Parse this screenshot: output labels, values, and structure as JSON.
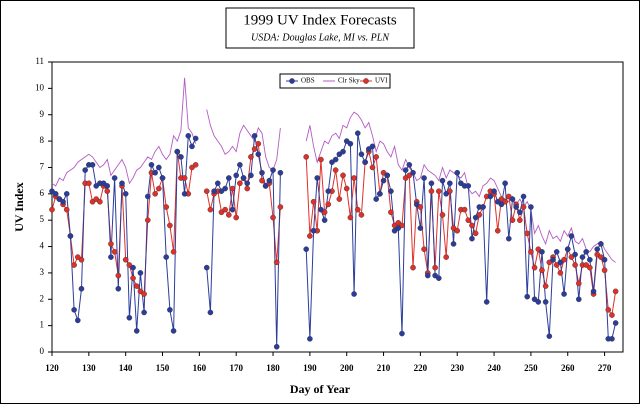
{
  "chart_data": {
    "type": "line",
    "title": "1999 UV Index Forecasts",
    "subtitle": "USDA: Douglas Lake, MI vs. PLN",
    "x_label": "Day of Year",
    "y_label": "UV Index",
    "xlim": [
      120,
      275
    ],
    "ylim": [
      0,
      11
    ],
    "xticks": [
      120,
      130,
      140,
      150,
      160,
      170,
      180,
      190,
      200,
      210,
      220,
      230,
      240,
      250,
      260,
      270
    ],
    "yticks": [
      0,
      1,
      2,
      3,
      4,
      5,
      6,
      7,
      8,
      9,
      10,
      11
    ],
    "legend": "top",
    "x": [
      120,
      121,
      122,
      123,
      124,
      125,
      126,
      127,
      128,
      129,
      130,
      131,
      132,
      133,
      134,
      135,
      136,
      137,
      138,
      139,
      140,
      141,
      142,
      143,
      144,
      145,
      146,
      147,
      148,
      149,
      150,
      151,
      152,
      153,
      154,
      155,
      156,
      157,
      158,
      159,
      160,
      161,
      162,
      163,
      164,
      165,
      166,
      167,
      168,
      169,
      170,
      171,
      172,
      173,
      174,
      175,
      176,
      177,
      178,
      179,
      180,
      181,
      182,
      183,
      184,
      185,
      186,
      187,
      188,
      189,
      190,
      191,
      192,
      193,
      194,
      195,
      196,
      197,
      198,
      199,
      200,
      201,
      202,
      203,
      204,
      205,
      206,
      207,
      208,
      209,
      210,
      211,
      212,
      213,
      214,
      215,
      216,
      217,
      218,
      219,
      220,
      221,
      222,
      223,
      224,
      225,
      226,
      227,
      228,
      229,
      230,
      231,
      232,
      233,
      234,
      235,
      236,
      237,
      238,
      239,
      240,
      241,
      242,
      243,
      244,
      245,
      246,
      247,
      248,
      249,
      250,
      251,
      252,
      253,
      254,
      255,
      256,
      257,
      258,
      259,
      260,
      261,
      262,
      263,
      264,
      265,
      266,
      267,
      268,
      269,
      270,
      271,
      272,
      273
    ],
    "series": [
      {
        "name": "OBS",
        "color": "#2b3d9c",
        "marker": true,
        "values": [
          6.1,
          6.0,
          5.8,
          5.7,
          6.0,
          4.4,
          1.6,
          1.2,
          2.4,
          6.9,
          7.1,
          7.1,
          6.3,
          6.4,
          6.4,
          6.3,
          3.6,
          6.6,
          2.4,
          6.4,
          6.0,
          1.3,
          3.2,
          0.8,
          3.0,
          1.5,
          5.9,
          7.1,
          6.8,
          7.0,
          6.6,
          3.6,
          1.6,
          0.8,
          7.6,
          7.4,
          6.0,
          8.2,
          7.8,
          8.1,
          null,
          null,
          3.2,
          1.5,
          6.1,
          6.4,
          6.1,
          6.2,
          6.6,
          5.4,
          6.7,
          7.1,
          6.6,
          6.4,
          6.7,
          8.2,
          7.5,
          6.8,
          6.3,
          6.5,
          6.9,
          0.2,
          6.8,
          null,
          null,
          null,
          null,
          null,
          null,
          3.9,
          0.5,
          4.6,
          6.6,
          5.4,
          5.0,
          6.1,
          7.2,
          7.3,
          7.5,
          7.6,
          8.0,
          7.9,
          2.2,
          8.3,
          7.5,
          7.2,
          7.7,
          7.8,
          5.8,
          6.0,
          6.5,
          6.7,
          6.1,
          4.6,
          4.7,
          0.7,
          6.9,
          7.1,
          6.8,
          5.6,
          4.7,
          6.6,
          2.9,
          6.4,
          2.9,
          2.8,
          6.5,
          6.0,
          6.4,
          4.1,
          6.8,
          6.4,
          6.3,
          6.3,
          4.3,
          5.1,
          5.5,
          5.5,
          1.9,
          5.9,
          6.1,
          5.7,
          5.6,
          6.4,
          4.3,
          5.8,
          5.5,
          5.3,
          5.9,
          2.1,
          5.5,
          2.0,
          1.9,
          3.8,
          1.9,
          0.6,
          3.5,
          3.8,
          3.4,
          2.2,
          3.9,
          4.4,
          3.7,
          2.0,
          3.6,
          3.8,
          3.5,
          2.3,
          3.9,
          4.1,
          3.5,
          0.5,
          0.5,
          1.1
        ]
      },
      {
        "name": "Clr Sky",
        "color": "#b45cc4",
        "marker": false,
        "values": [
          6.4,
          6.3,
          6.6,
          6.5,
          6.8,
          6.9,
          7.0,
          7.2,
          7.3,
          7.4,
          7.5,
          7.4,
          7.2,
          7.0,
          7.1,
          7.3,
          6.7,
          6.9,
          7.1,
          7.3,
          7.0,
          6.4,
          6.6,
          6.9,
          7.0,
          7.2,
          7.4,
          7.3,
          7.6,
          7.8,
          7.5,
          7.3,
          7.5,
          8.2,
          8.0,
          8.4,
          10.4,
          8.5,
          8.3,
          7.9,
          null,
          null,
          9.2,
          8.6,
          8.2,
          8.0,
          7.8,
          7.5,
          7.6,
          7.8,
          7.6,
          8.3,
          8.6,
          8.4,
          8.2,
          8.0,
          8.5,
          8.3,
          7.4,
          7.0,
          6.9,
          7.3,
          8.5,
          null,
          null,
          null,
          null,
          null,
          null,
          8.0,
          8.6,
          7.8,
          7.2,
          7.6,
          8.0,
          7.9,
          8.2,
          8.3,
          8.1,
          8.6,
          8.5,
          8.9,
          9.1,
          9.0,
          8.8,
          8.5,
          8.7,
          8.2,
          7.6,
          8.0,
          7.9,
          7.6,
          7.4,
          7.8,
          7.1,
          6.9,
          7.3,
          7.0,
          6.8,
          6.5,
          6.6,
          7.1,
          6.9,
          6.8,
          6.7,
          6.5,
          7.0,
          6.6,
          6.9,
          6.8,
          6.7,
          6.6,
          6.8,
          6.2,
          6.0,
          6.1,
          5.9,
          6.3,
          6.4,
          6.6,
          6.5,
          6.2,
          5.9,
          5.8,
          5.7,
          5.9,
          5.6,
          5.8,
          5.5,
          5.7,
          5.4,
          4.5,
          4.8,
          4.4,
          4.1,
          4.6,
          4.3,
          4.4,
          4.2,
          4.6,
          4.4,
          4.7,
          4.2,
          4.1,
          4.3,
          3.9,
          3.8,
          4.0,
          4.1,
          4.2,
          3.9,
          3.7,
          3.5,
          3.4
        ]
      },
      {
        "name": "UVI",
        "color": "#e0302a",
        "marker": true,
        "values": [
          5.4,
          5.9,
          5.8,
          5.6,
          5.4,
          4.4,
          3.3,
          3.6,
          3.5,
          6.4,
          6.4,
          5.7,
          5.8,
          5.7,
          6.3,
          6.1,
          4.1,
          3.8,
          2.9,
          6.3,
          3.5,
          3.3,
          2.8,
          2.5,
          2.3,
          2.2,
          5.0,
          6.8,
          6.0,
          6.2,
          6.6,
          5.5,
          4.8,
          3.8,
          7.6,
          6.6,
          6.6,
          6.0,
          7.0,
          7.1,
          null,
          null,
          6.1,
          5.4,
          6.0,
          6.1,
          5.3,
          5.4,
          5.2,
          6.2,
          5.1,
          6.4,
          6.6,
          6.2,
          7.4,
          7.7,
          7.9,
          6.5,
          6.3,
          6.4,
          5.1,
          3.4,
          5.5,
          null,
          null,
          null,
          null,
          null,
          null,
          7.4,
          4.4,
          5.7,
          4.6,
          7.3,
          5.3,
          5.6,
          6.1,
          6.9,
          5.8,
          6.7,
          6.2,
          5.1,
          6.6,
          5.4,
          5.2,
          7.2,
          7.6,
          7.0,
          7.4,
          6.0,
          6.8,
          6.7,
          5.3,
          4.8,
          4.9,
          4.8,
          6.6,
          6.7,
          3.2,
          5.7,
          5.5,
          3.9,
          3.0,
          6.1,
          3.2,
          6.1,
          5.2,
          3.6,
          6.1,
          4.7,
          4.6,
          5.4,
          5.4,
          5.0,
          4.8,
          4.5,
          5.2,
          5.5,
          5.9,
          6.1,
          6.0,
          4.6,
          5.8,
          5.7,
          5.9,
          5.0,
          5.6,
          5.0,
          5.5,
          4.5,
          3.8,
          3.2,
          3.9,
          3.1,
          2.5,
          3.4,
          3.6,
          3.3,
          3.0,
          3.5,
          3.9,
          3.6,
          3.3,
          2.6,
          3.3,
          3.3,
          3.2,
          2.2,
          3.7,
          3.6,
          3.1,
          1.6,
          1.4,
          2.3
        ]
      }
    ]
  }
}
